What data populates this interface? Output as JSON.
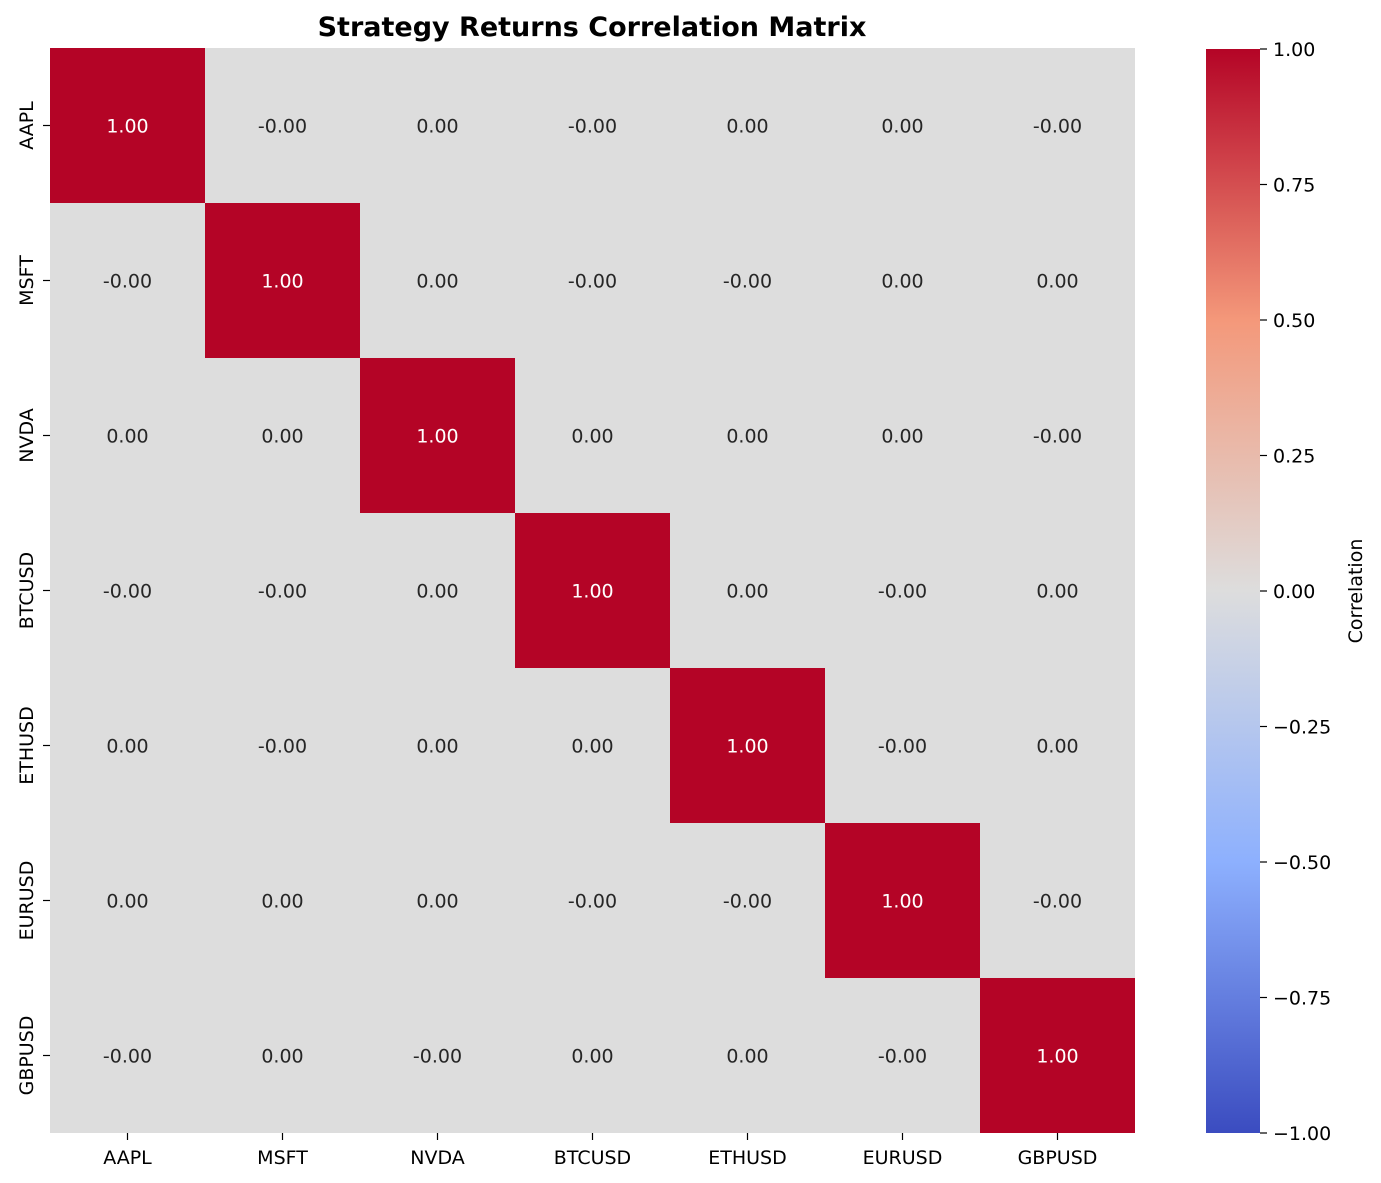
{
  "chart_data": {
    "type": "heatmap",
    "title": "Strategy Returns Correlation Matrix",
    "x_categories": [
      "AAPL",
      "MSFT",
      "NVDA",
      "BTCUSD",
      "ETHUSD",
      "EURUSD",
      "GBPUSD"
    ],
    "y_categories": [
      "AAPL",
      "MSFT",
      "NVDA",
      "BTCUSD",
      "ETHUSD",
      "EURUSD",
      "GBPUSD"
    ],
    "values": [
      [
        1.0,
        -0.0,
        0.0,
        -0.0,
        0.0,
        0.0,
        -0.0
      ],
      [
        -0.0,
        1.0,
        0.0,
        -0.0,
        -0.0,
        0.0,
        0.0
      ],
      [
        0.0,
        0.0,
        1.0,
        0.0,
        0.0,
        0.0,
        -0.0
      ],
      [
        -0.0,
        -0.0,
        0.0,
        1.0,
        0.0,
        -0.0,
        0.0
      ],
      [
        0.0,
        -0.0,
        0.0,
        0.0,
        1.0,
        -0.0,
        0.0
      ],
      [
        0.0,
        0.0,
        0.0,
        -0.0,
        -0.0,
        1.0,
        -0.0
      ],
      [
        -0.0,
        0.0,
        -0.0,
        0.0,
        0.0,
        -0.0,
        1.0
      ]
    ],
    "value_labels": [
      [
        "1.00",
        "-0.00",
        "0.00",
        "-0.00",
        "0.00",
        "0.00",
        "-0.00"
      ],
      [
        "-0.00",
        "1.00",
        "0.00",
        "-0.00",
        "-0.00",
        "0.00",
        "0.00"
      ],
      [
        "0.00",
        "0.00",
        "1.00",
        "0.00",
        "0.00",
        "0.00",
        "-0.00"
      ],
      [
        "-0.00",
        "-0.00",
        "0.00",
        "1.00",
        "0.00",
        "-0.00",
        "0.00"
      ],
      [
        "0.00",
        "-0.00",
        "0.00",
        "0.00",
        "1.00",
        "-0.00",
        "0.00"
      ],
      [
        "0.00",
        "0.00",
        "0.00",
        "-0.00",
        "-0.00",
        "1.00",
        "-0.00"
      ],
      [
        "-0.00",
        "0.00",
        "-0.00",
        "0.00",
        "0.00",
        "-0.00",
        "1.00"
      ]
    ],
    "colorbar": {
      "label": "Correlation",
      "range": [
        -1.0,
        1.0
      ],
      "ticks": [
        1.0,
        0.75,
        0.5,
        0.25,
        0.0,
        -0.25,
        -0.5,
        -0.75,
        -1.0
      ],
      "tick_labels": [
        "1.00",
        "0.75",
        "0.50",
        "0.25",
        "0.00",
        "−0.25",
        "−0.50",
        "−0.75",
        "−1.00"
      ]
    },
    "colormap": "coolwarm",
    "colors": {
      "high": "#b40426",
      "mid": "#dddddd",
      "low": "#3b4cc0"
    }
  }
}
